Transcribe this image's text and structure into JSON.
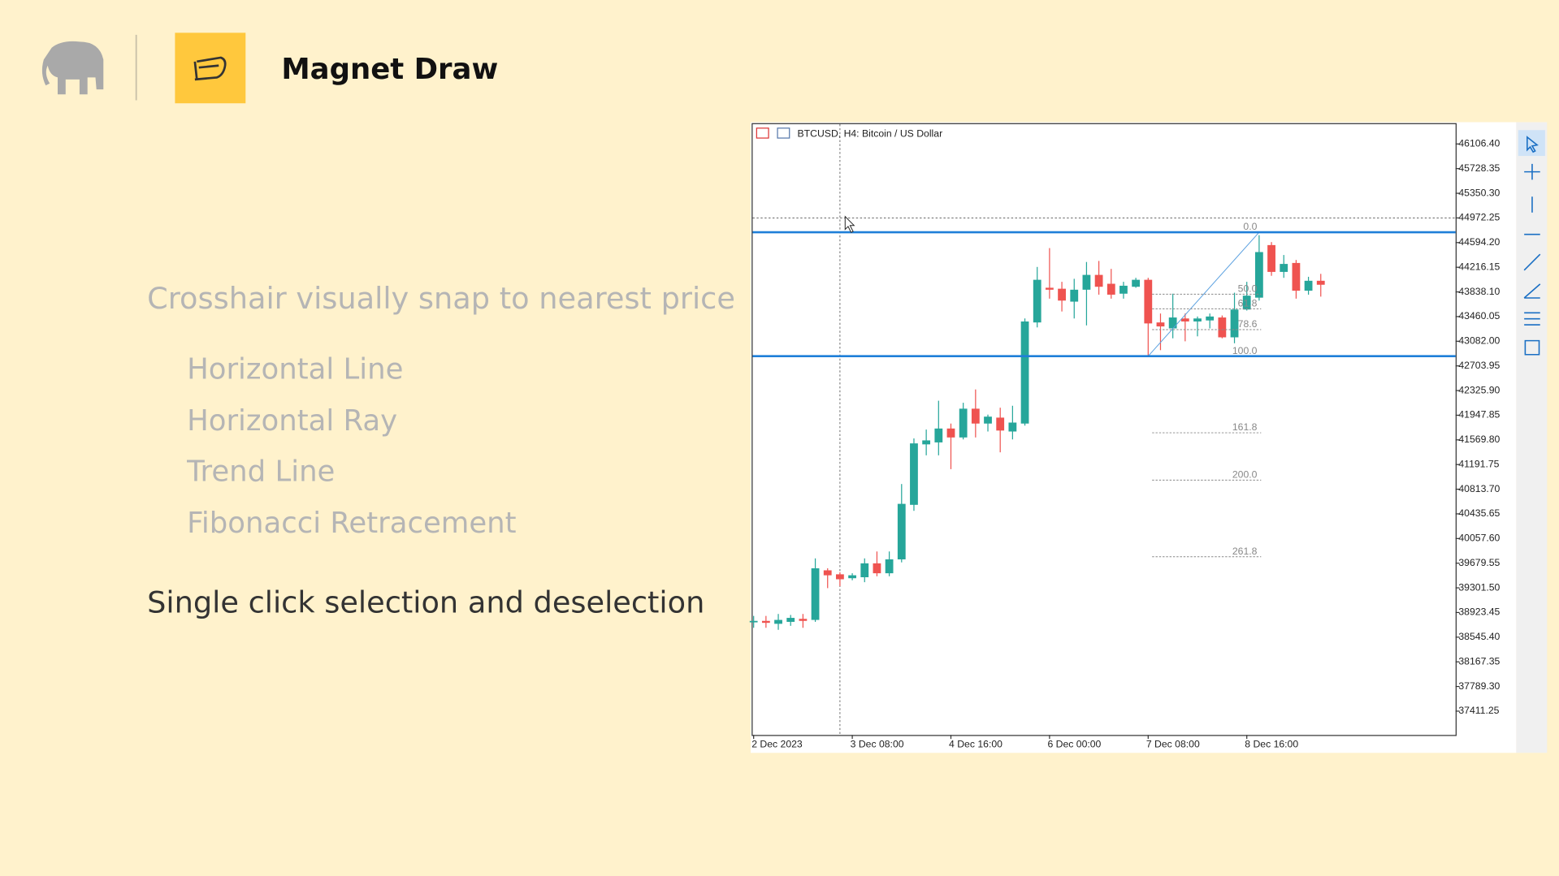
{
  "header": {
    "title": "Magnet Draw"
  },
  "features": {
    "heading": "Crosshair visually snap to nearest price",
    "items": [
      "Horizontal Line",
      "Horizontal Ray",
      "Trend Line",
      "Fibonacci Retracement"
    ],
    "footer": "Single click selection and deselection"
  },
  "chart_data": {
    "type": "candlestick",
    "title": "BTCUSD, H4:  Bitcoin / US Dollar",
    "categories": [
      "2 Dec 2023",
      null,
      null,
      null,
      null,
      null,
      null,
      null,
      "3 Dec 08:00",
      null,
      null,
      null,
      null,
      null,
      null,
      null,
      "4 Dec 16:00",
      null,
      null,
      null,
      null,
      null,
      null,
      null,
      "6 Dec 00:00",
      null,
      null,
      null,
      null,
      null,
      null,
      null,
      "7 Dec 08:00",
      null,
      null,
      null,
      null,
      null,
      null,
      null,
      "8 Dec 16:00",
      null,
      null,
      null,
      null,
      null,
      null
    ],
    "open": [
      38780,
      38795,
      38750,
      38780,
      38826,
      38810,
      39570,
      39509,
      39449,
      39464,
      39677,
      39525,
      39738,
      40574,
      41501,
      41531,
      41744,
      41607,
      42048,
      41820,
      41911,
      41698,
      41820,
      43370,
      43902,
      43887,
      43689,
      43872,
      44099,
      43963,
      43811,
      43917,
      44024,
      43370,
      43279,
      43431,
      43385,
      43401,
      43446,
      43142,
      43568,
      43750,
      44556,
      44145,
      44282,
      43857,
      44009
    ],
    "high": [
      38871,
      38871,
      38901,
      38886,
      38901,
      39753,
      39601,
      39540,
      39525,
      39753,
      39859,
      39859,
      40893,
      41592,
      41728,
      42170,
      41820,
      42139,
      42343,
      41957,
      42063,
      42093,
      43431,
      44221,
      44510,
      43993,
      44039,
      44297,
      44313,
      44191,
      43993,
      44054,
      44054,
      43507,
      43811,
      43507,
      43461,
      43507,
      43477,
      43826,
      43993,
      44708,
      44602,
      44404,
      44328,
      44070,
      44115
    ],
    "low": [
      38689,
      38689,
      38658,
      38719,
      38689,
      38780,
      39297,
      39327,
      39418,
      39388,
      39479,
      39479,
      39692,
      40482,
      41333,
      41333,
      41121,
      41577,
      41607,
      41698,
      41379,
      41577,
      41789,
      43294,
      43735,
      43538,
      43431,
      43325,
      43796,
      43735,
      43735,
      43902,
      42853,
      42945,
      43127,
      43081,
      43157,
      43279,
      43127,
      43051,
      43553,
      43705,
      44085,
      44054,
      43735,
      43796,
      43766
    ],
    "close": [
      38795,
      38765,
      38810,
      38841,
      38795,
      39601,
      39494,
      39433,
      39494,
      39677,
      39525,
      39738,
      40589,
      41516,
      41562,
      41744,
      41607,
      42048,
      41820,
      41926,
      41713,
      41835,
      43385,
      44024,
      43872,
      43705,
      43872,
      44099,
      43917,
      43796,
      43933,
      44024,
      43355,
      43309,
      43446,
      43385,
      43431,
      43461,
      43142,
      43568,
      43781,
      44449,
      44145,
      44267,
      43857,
      44009,
      43948
    ],
    "up_color": "#26a69a",
    "down_color": "#ef5350",
    "ylim": [
      37046,
      46410
    ],
    "yticks": [
      {
        "value": 46106.4,
        "label": "46106.40"
      },
      45728.35,
      {
        "value": 45350.3,
        "label": "45350.30"
      },
      44972.25,
      {
        "value": 44594.2,
        "label": "44594.20"
      },
      44216.15,
      {
        "value": 43838.1,
        "label": "43838.10"
      },
      43460.05,
      {
        "value": 43082,
        "label": "43082.00"
      },
      42703.95,
      {
        "value": 42325.9,
        "label": "42325.90"
      },
      41947.85,
      {
        "value": 41569.8,
        "label": "41569.80"
      },
      41191.75,
      {
        "value": 40813.7,
        "label": "40813.70"
      },
      40435.65,
      {
        "value": 40057.6,
        "label": "40057.60"
      },
      39679.55,
      {
        "value": 39301.5,
        "label": "39301.50"
      },
      38923.45,
      {
        "value": 38545.4,
        "label": "38545.40"
      },
      38167.35,
      {
        "value": 37789.3,
        "label": "37789.30"
      },
      37411.25
    ],
    "horizontal_lines": [
      {
        "value": 44753,
        "color": "#1e7fd8"
      },
      {
        "value": 42853,
        "color": "#1e7fd8"
      }
    ],
    "fibonacci": {
      "from": 42853,
      "to": 44753,
      "start": 32,
      "end": 41,
      "levels": [
        {
          "value": 0,
          "label": "0.0"
        },
        {
          "value": 50,
          "label": "50.0"
        },
        61.8,
        78.6,
        {
          "value": 100,
          "label": "100.0"
        },
        161.8,
        {
          "value": 200,
          "label": "200.0"
        },
        261.8
      ]
    },
    "crosshair": {
      "index": 7,
      "value": 44972.25
    }
  }
}
